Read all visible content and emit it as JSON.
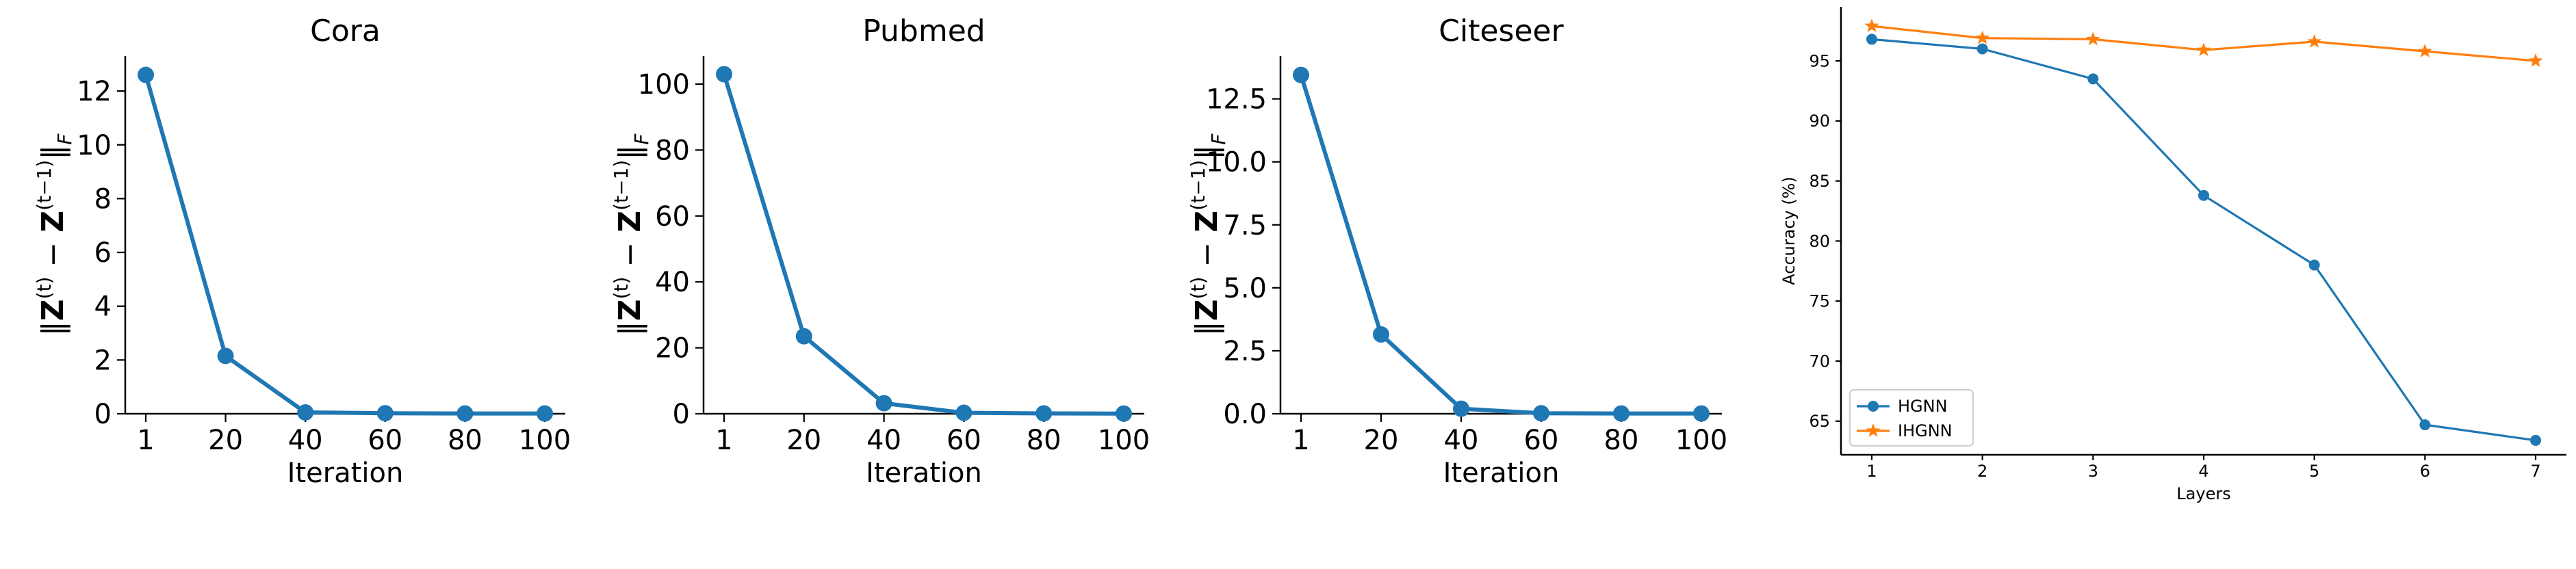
{
  "colors": {
    "blue": "#1f77b4",
    "orange": "#ff7f0e",
    "axis": "#000000"
  },
  "chart_data": [
    {
      "type": "line",
      "title": "Cora",
      "xlabel": "Iteration",
      "ylabel": "||Z(t) − Z(t−1)||F",
      "categories": [
        "1",
        "20",
        "40",
        "60",
        "80",
        "100"
      ],
      "series": [
        {
          "values": [
            12.6,
            2.15,
            0.05,
            0.02,
            0.01,
            0.01
          ]
        }
      ],
      "ylim": [
        0,
        13.3
      ],
      "yticks": [
        0,
        2,
        4,
        6,
        8,
        10,
        12
      ],
      "yticklabels": [
        "0",
        "2",
        "4",
        "6",
        "8",
        "10",
        "12"
      ],
      "grid": false,
      "marker": "circle"
    },
    {
      "type": "line",
      "title": "Pubmed",
      "xlabel": "Iteration",
      "ylabel": "||Z(t) − Z(t−1)||F",
      "categories": [
        "1",
        "20",
        "40",
        "60",
        "80",
        "100"
      ],
      "series": [
        {
          "values": [
            103,
            23.5,
            3.2,
            0.3,
            0.1,
            0.05
          ]
        }
      ],
      "ylim": [
        0,
        108.5
      ],
      "yticks": [
        0,
        20,
        40,
        60,
        80,
        100
      ],
      "yticklabels": [
        "0",
        "20",
        "40",
        "60",
        "80",
        "100"
      ],
      "grid": false,
      "marker": "circle"
    },
    {
      "type": "line",
      "title": "Citeseer",
      "xlabel": "Iteration",
      "ylabel": "||Z(t) − Z(t−1)||F",
      "categories": [
        "1",
        "20",
        "40",
        "60",
        "80",
        "100"
      ],
      "series": [
        {
          "values": [
            13.45,
            3.15,
            0.2,
            0.02,
            0.01,
            0.01
          ]
        }
      ],
      "ylim": [
        0,
        14.2
      ],
      "yticks": [
        0,
        2.5,
        5,
        7.5,
        10,
        12.5
      ],
      "yticklabels": [
        "0.0",
        "2.5",
        "5.0",
        "7.5",
        "10.0",
        "12.5"
      ],
      "grid": false,
      "marker": "circle"
    },
    {
      "type": "line",
      "title": "",
      "xlabel": "Layers",
      "ylabel": "Accuracy (%)",
      "categories": [
        "1",
        "2",
        "3",
        "4",
        "5",
        "6",
        "7"
      ],
      "series": [
        {
          "name": "HGNN",
          "marker": "circle",
          "values": [
            96.8,
            96.0,
            93.5,
            83.8,
            78.0,
            64.7,
            63.4
          ]
        },
        {
          "name": "IHGNN",
          "marker": "star",
          "values": [
            97.9,
            96.9,
            96.8,
            95.9,
            96.6,
            95.8,
            95.0
          ]
        }
      ],
      "ylim": [
        62.2,
        99.5
      ],
      "yticks": [
        65,
        70,
        75,
        80,
        85,
        90,
        95
      ],
      "yticklabels": [
        "65",
        "70",
        "75",
        "80",
        "85",
        "90",
        "95"
      ],
      "legend": "lower-left",
      "grid": false
    }
  ]
}
